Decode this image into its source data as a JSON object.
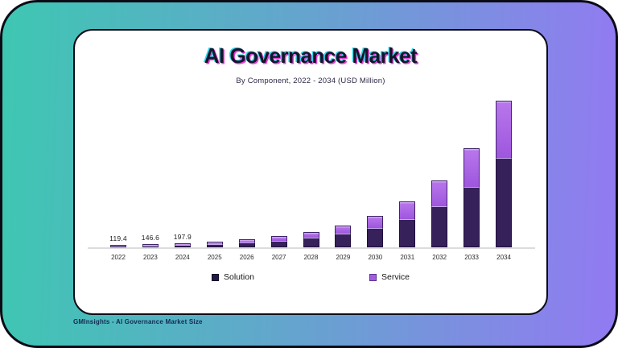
{
  "header": {
    "title": "AI Governance Market",
    "subtitle": "By Component, 2022 - 2034 (USD Million)"
  },
  "footer": {
    "credit": "GMInsights - AI Governance Market Size"
  },
  "colors": {
    "gradient_start": "#3ec7b2",
    "gradient_mid": "#66a3cf",
    "gradient_end": "#927af2",
    "frame_border": "#0b0b16",
    "card_bg": "#ffffff",
    "solution": "#37215a",
    "solution_border": "#1f0f3d",
    "service": "#a560e2",
    "service_border": "#3e2468",
    "axis_line": "#dcdcdc",
    "title_glitch_cyan": "#29d8e8",
    "title_glitch_magenta": "#ea3cd8"
  },
  "chart_data": {
    "type": "bar",
    "stacked": true,
    "title": "AI Governance Market",
    "subtitle": "By Component, 2022 - 2034 (USD Million)",
    "unit": "USD Million",
    "categories": [
      "2022",
      "2023",
      "2024",
      "2025",
      "2026",
      "2027",
      "2028",
      "2029",
      "2030",
      "2031",
      "2032",
      "2033",
      "2034"
    ],
    "series": [
      {
        "name": "Solution",
        "color": "#37215a",
        "values": [
          73,
          89,
          121,
          177,
          244,
          329,
          464,
          659,
          952,
          1391,
          2025,
          2977,
          4416
        ]
      },
      {
        "name": "Service",
        "color": "#a560e2",
        "values": [
          46.4,
          57.6,
          76.9,
          113,
          156,
          211,
          296,
          421,
          608,
          889,
          1295,
          1903,
          2824
        ]
      }
    ],
    "totals": [
      119.4,
      146.6,
      197.9,
      290,
      400,
      540,
      760,
      1080,
      1560,
      2280,
      3320,
      4880,
      7240
    ],
    "data_labels": [
      "119.4",
      "146.6",
      "197.9",
      "",
      "",
      "",
      "",
      "",
      "",
      "",
      "",
      "",
      ""
    ],
    "ylim": [
      0,
      7450
    ],
    "grid": false,
    "legend_position": "bottom"
  }
}
